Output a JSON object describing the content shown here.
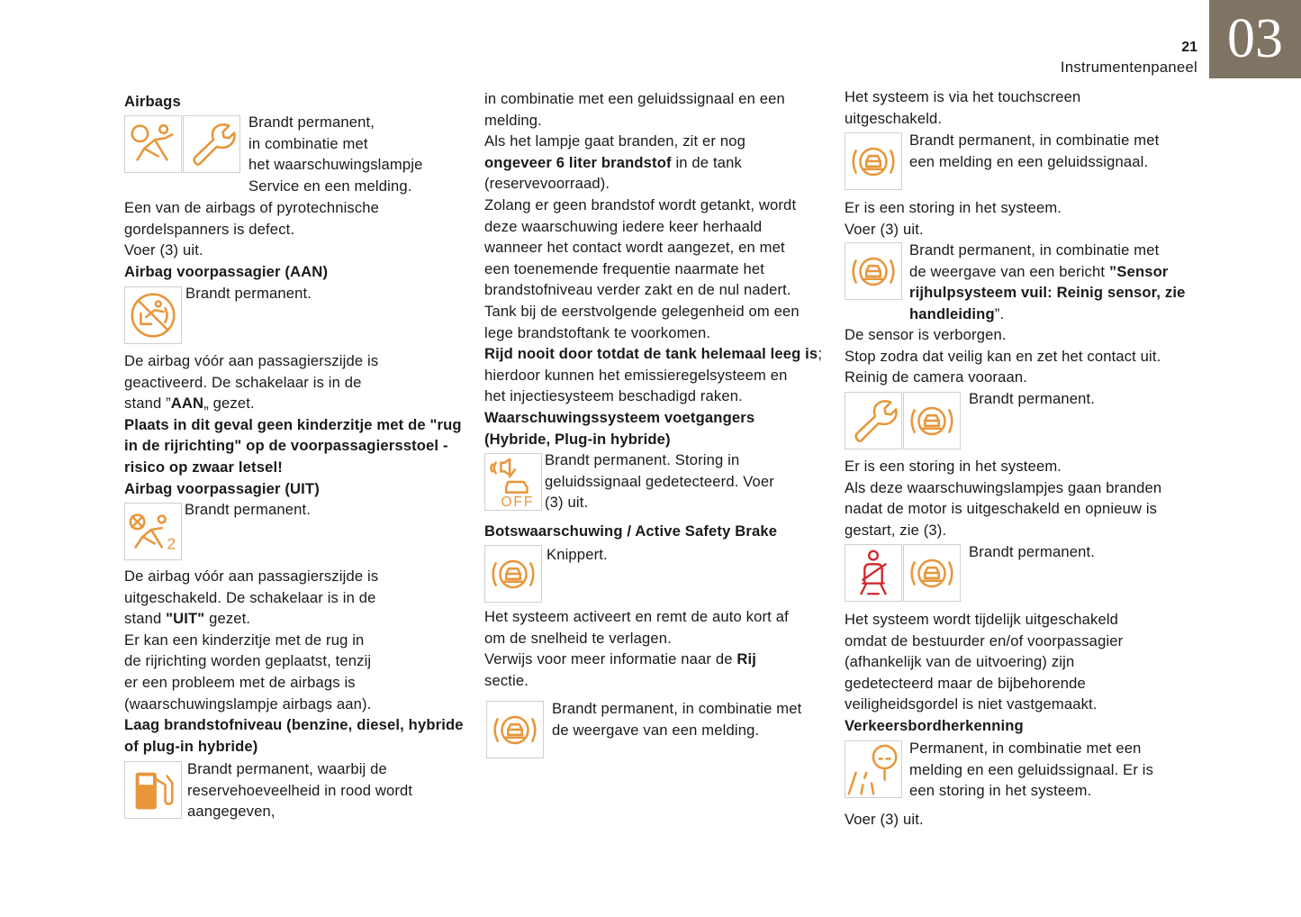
{
  "header": {
    "page_number": "21",
    "section_title": "Instrumentenpaneel",
    "chapter_tab": "03",
    "tab_color": "#7f7464"
  },
  "colors": {
    "warning_orange": "#e8963a",
    "warning_red": "#d0262e"
  },
  "icons": {
    "pedestrian_off_label": "OFF",
    "airbag_off_digit": "2"
  },
  "col1": [
    [
      {
        "bold": "Airbags"
      }
    ],
    [
      "Brandt permanent,",
      "in combinatie met",
      "het waarschuwingslampje",
      "Service en een melding."
    ],
    [
      "Een van de airbags of pyrotechnische",
      "gordelspanners is defect.",
      "Voer (3) uit.",
      {
        "bold": "Airbag voorpassagier (AAN)"
      }
    ],
    [
      "Brandt permanent."
    ],
    [
      "De airbag vóór aan passagierszijde is",
      "geactiveerd. De schakelaar is in de",
      [
        "stand ”",
        {
          "bold": "AAN"
        },
        "„ gezet."
      ],
      {
        "bold": "Plaats in dit geval geen kinderzitje met de \"rug"
      },
      {
        "bold": "in de rijrichting\" op de voorpassagiersstoel -"
      },
      {
        "bold": "risico op zwaar letsel!"
      },
      {
        "bold": "Airbag voorpassagier (UIT)"
      }
    ],
    [
      "Brandt permanent."
    ],
    [
      "De airbag vóór aan passagierszijde is",
      "uitgeschakeld. De schakelaar is in de",
      [
        "stand ",
        {
          "bold": "\"UIT\""
        },
        " gezet."
      ],
      "Er kan een kinderzitje met de rug in",
      "de rijrichting worden geplaatst, tenzij",
      "er een probleem met de airbags is",
      "(waarschuwingslampje airbags aan).",
      {
        "bold": "Laag brandstofniveau (benzine, diesel, hybride"
      },
      {
        "bold": "of plug-in hybride)"
      }
    ],
    [
      "Brandt permanent, waarbij de",
      "reservehoeveelheid in rood wordt",
      "aangegeven,"
    ]
  ],
  "col2": [
    [
      "in combinatie met een geluidssignaal en een",
      "melding.",
      "Als het lampje gaat branden, zit er nog",
      [
        {
          "bold": "ongeveer 6 liter brandstof"
        },
        " in de tank"
      ],
      "(reservevoorraad).",
      "Zolang er geen brandstof wordt getankt, wordt",
      "deze waarschuwing iedere keer herhaald",
      "wanneer het contact wordt aangezet, en met",
      "een toenemende frequentie naarmate het",
      "brandstofniveau verder zakt en de nul nadert.",
      "Tank bij de eerstvolgende gelegenheid om een",
      "lege brandstoftank te voorkomen.",
      [
        {
          "bold": "Rijd nooit door totdat de tank helemaal leeg is"
        },
        ";"
      ],
      "hierdoor kunnen het emissieregelsysteem en",
      "het injectiesysteem beschadigd raken.",
      {
        "bold": "Waarschuwingssysteem voetgangers"
      },
      {
        "bold": "(Hybride, Plug-in hybride)"
      }
    ],
    [
      "Brandt permanent. Storing in",
      "geluidssignaal gedetecteerd. Voer",
      "(3) uit."
    ],
    [
      {
        "bold": "Botswaarschuwing / Active Safety Brake"
      }
    ],
    [
      "Knippert."
    ],
    [
      "Het systeem activeert en remt de auto kort af",
      "om de snelheid te verlagen.",
      [
        "Verwijs voor meer informatie naar de ",
        {
          "bold": "Rij"
        }
      ],
      "sectie."
    ],
    [
      "Brandt permanent, in combinatie met",
      "de weergave van een melding."
    ]
  ],
  "col3": [
    [
      "Het systeem is via het touchscreen",
      "uitgeschakeld."
    ],
    [
      "Brandt permanent, in combinatie met",
      "een melding en een geluidssignaal."
    ],
    [
      "Er is een storing in het systeem.",
      "Voer (3) uit."
    ],
    [
      "Brandt permanent, in combinatie met",
      [
        "de weergave van een bericht ",
        {
          "bold": "”Sensor"
        }
      ],
      {
        "bold": "rijhulpsysteem vuil: Reinig sensor, zie"
      },
      [
        {
          "bold": "handleiding"
        },
        "”."
      ]
    ],
    [
      "De sensor is verborgen.",
      "Stop zodra dat veilig kan en zet het contact uit.",
      "Reinig de camera vooraan."
    ],
    [
      "Brandt permanent."
    ],
    [
      "Er is een storing in het systeem.",
      "Als deze waarschuwingslampjes gaan branden",
      "nadat de motor is uitgeschakeld en opnieuw is",
      "gestart, zie (3)."
    ],
    [
      "Brandt permanent."
    ],
    [
      "Het systeem wordt tijdelijk uitgeschakeld",
      "omdat de bestuurder en/of voorpassagier",
      "(afhankelijk van de uitvoering) zijn",
      "gedetecteerd maar de bijbehorende",
      "veiligheidsgordel is niet vastgemaakt.",
      {
        "bold": "Verkeersbordherkenning"
      }
    ],
    [
      "Permanent, in combinatie met een",
      "melding en een geluidssignaal. Er is",
      "een storing in het systeem."
    ],
    [
      "Voer (3) uit."
    ]
  ]
}
